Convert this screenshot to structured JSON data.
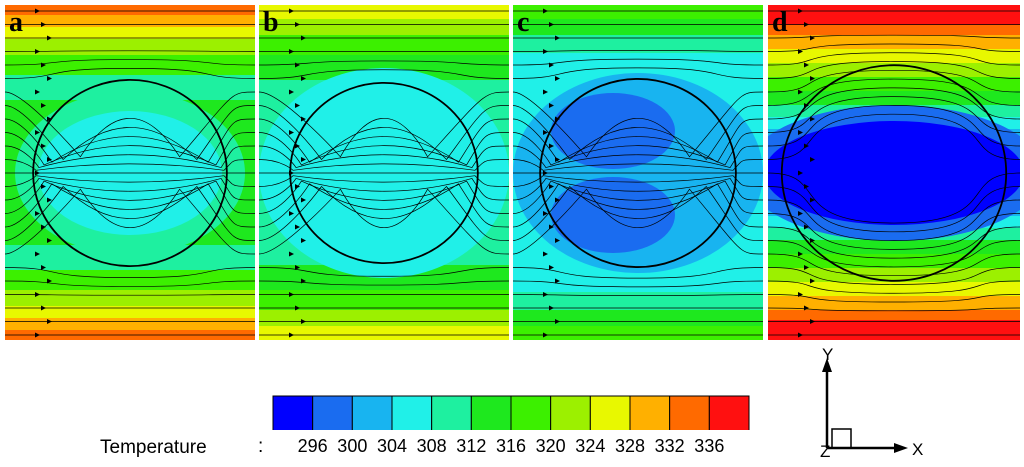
{
  "panels": [
    {
      "label": "a",
      "flow": "cold",
      "background": "#1ee81e"
    },
    {
      "label": "b",
      "flow": "cold",
      "background": "#1ee81e"
    },
    {
      "label": "c",
      "flow": "cold",
      "background": "#18b4f0"
    },
    {
      "label": "d",
      "flow": "cold",
      "background": "#18b4f0"
    }
  ],
  "colorbar": {
    "title": "Temperature",
    "separator": ":",
    "ticks": [
      "296",
      "300",
      "304",
      "308",
      "312",
      "316",
      "320",
      "324",
      "328",
      "332",
      "336"
    ],
    "colors": [
      "#0000ff",
      "#1a6cf0",
      "#18b4f0",
      "#20f0e8",
      "#1ef0a0",
      "#1ee81e",
      "#3cf000",
      "#9cf000",
      "#e8f800",
      "#ffb000",
      "#ff6a00",
      "#ff1010"
    ]
  },
  "axes": {
    "y": "Y",
    "x": "X",
    "z": "Z"
  }
}
